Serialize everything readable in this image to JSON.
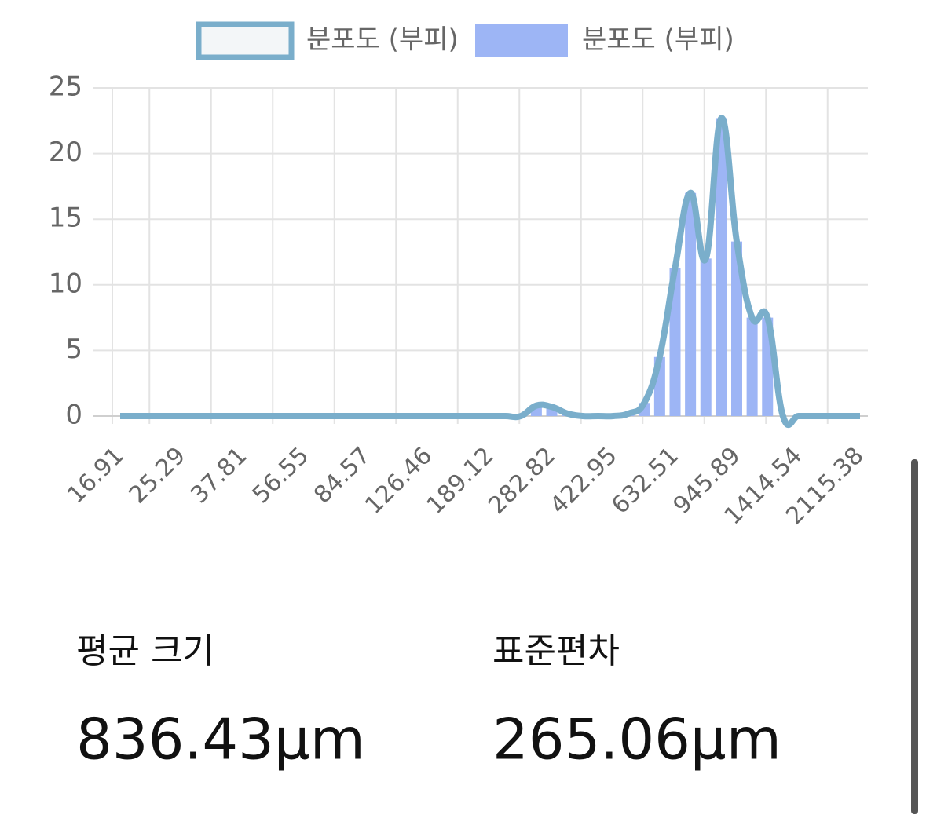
{
  "chart_data": {
    "type": "bar-line",
    "categories": [
      "16.91",
      null,
      null,
      null,
      "25.29",
      null,
      null,
      null,
      "37.81",
      null,
      null,
      null,
      "56.55",
      null,
      null,
      null,
      "84.57",
      null,
      null,
      null,
      "126.46",
      null,
      null,
      null,
      "189.12",
      null,
      null,
      null,
      "282.82",
      null,
      null,
      null,
      "422.95",
      null,
      null,
      null,
      "632.51",
      null,
      null,
      null,
      "945.89",
      null,
      null,
      null,
      "1414.54",
      null,
      null,
      null,
      "2115.38"
    ],
    "series": [
      {
        "name": "분포도 (부피)",
        "type": "line",
        "color": "#7aaecb",
        "fill": "#f3f6f8",
        "values": [
          0,
          0,
          0,
          0,
          0,
          0,
          0,
          0,
          0,
          0,
          0,
          0,
          0,
          0,
          0,
          0,
          0,
          0,
          0,
          0,
          0,
          0,
          0,
          0,
          0,
          0,
          0,
          0.8,
          0.7,
          0.2,
          0,
          0,
          0,
          0.2,
          1,
          4.5,
          11.3,
          17,
          12,
          22.7,
          13.3,
          7.5,
          7.5,
          0,
          0,
          0,
          0,
          0,
          0
        ]
      },
      {
        "name": "분포도 (부피)",
        "type": "bar",
        "color": "#9db5f5",
        "values": [
          0,
          0,
          0,
          0,
          0,
          0,
          0,
          0,
          0,
          0,
          0,
          0,
          0,
          0,
          0,
          0,
          0,
          0,
          0,
          0,
          0,
          0,
          0,
          0,
          0,
          0,
          0,
          0.8,
          0.7,
          0.2,
          0,
          0,
          0,
          0.2,
          1,
          4.5,
          11.3,
          17,
          12,
          22.7,
          13.3,
          7.5,
          7.5,
          0,
          0,
          0,
          0,
          0,
          0
        ]
      }
    ],
    "ylim": [
      0,
      25
    ],
    "yticks": [
      0,
      5,
      10,
      15,
      20,
      25
    ],
    "grid": true,
    "legend": "top"
  },
  "stats": [
    {
      "label": "평균 크기",
      "value": "836.43μm"
    },
    {
      "label": "표준편차",
      "value": "265.06μm"
    }
  ]
}
